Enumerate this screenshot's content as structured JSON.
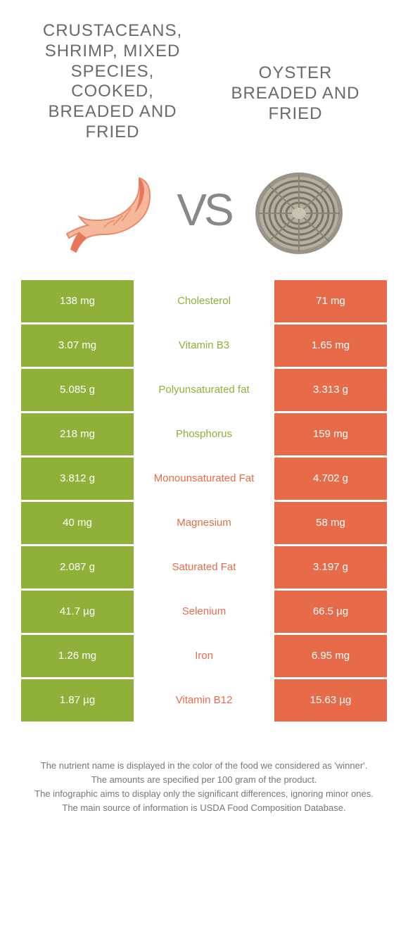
{
  "food_left": {
    "title": "CRUSTACEANS, SHRIMP, MIXED SPECIES, COOKED, BREADED AND FRIED",
    "color": "#8fb039"
  },
  "food_right": {
    "title": "OYSTER BREADED AND FRIED",
    "color": "#e86b49"
  },
  "vs_label": "VS",
  "nutrients": [
    {
      "name": "Cholesterol",
      "left": "138 mg",
      "right": "71 mg",
      "winner": "left"
    },
    {
      "name": "Vitamin B3",
      "left": "3.07 mg",
      "right": "1.65 mg",
      "winner": "left"
    },
    {
      "name": "Polyunsaturated fat",
      "left": "5.085 g",
      "right": "3.313 g",
      "winner": "left"
    },
    {
      "name": "Phosphorus",
      "left": "218 mg",
      "right": "159 mg",
      "winner": "left"
    },
    {
      "name": "Monounsaturated Fat",
      "left": "3.812 g",
      "right": "4.702 g",
      "winner": "right"
    },
    {
      "name": "Magnesium",
      "left": "40 mg",
      "right": "58 mg",
      "winner": "right"
    },
    {
      "name": "Saturated Fat",
      "left": "2.087 g",
      "right": "3.197 g",
      "winner": "right"
    },
    {
      "name": "Selenium",
      "left": "41.7 µg",
      "right": "66.5 µg",
      "winner": "right"
    },
    {
      "name": "Iron",
      "left": "1.26 mg",
      "right": "6.95 mg",
      "winner": "right"
    },
    {
      "name": "Vitamin B12",
      "left": "1.87 µg",
      "right": "15.63 µg",
      "winner": "right"
    }
  ],
  "footer": {
    "line1": "The nutrient name is displayed in the color of the food we considered as 'winner'.",
    "line2": "The amounts are specified per 100 gram of the product.",
    "line3": "The infographic aims to display only the significant differences, ignoring minor ones.",
    "line4": "The main source of information is USDA Food Composition Database."
  }
}
